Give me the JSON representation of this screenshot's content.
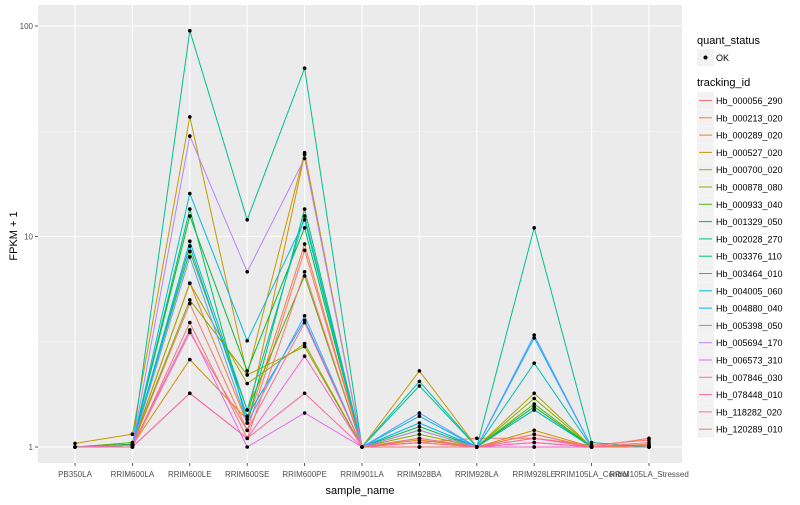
{
  "chart_data": {
    "type": "line",
    "title": "",
    "xlabel": "sample_name",
    "ylabel": "FPKM + 1",
    "y_scale": "log10",
    "ylim": [
      1,
      100
    ],
    "y_ticks": [
      1,
      10,
      100
    ],
    "y_tick_labels": [
      "1",
      "10",
      "100"
    ],
    "categories": [
      "PB350LA",
      "RRIM600LA",
      "RRIM600LE",
      "RRIM600SE",
      "RRIM600PE",
      "RRIM901LA",
      "RRIM928BA",
      "RRIM928LA",
      "RRIM928LE",
      "RRIM105LA_Control",
      "RRIM105LA_Stressed"
    ],
    "legend": {
      "placement": "right",
      "quant_title": "quant_status",
      "quant_label": "OK",
      "tracking_title": "tracking_id"
    },
    "point_color": "#000000",
    "series": [
      {
        "name": "Hb_000056_290",
        "color": "#F8766D",
        "values": [
          1.0,
          1.02,
          4.8,
          1.2,
          8.6,
          1.0,
          1.05,
          1.1,
          1.1,
          1.02,
          1.08
        ]
      },
      {
        "name": "Hb_000213_020",
        "color": "#EB8335",
        "values": [
          1.0,
          1.02,
          6.0,
          1.3,
          9.2,
          1.0,
          1.05,
          1.0,
          1.15,
          1.0,
          1.03
        ]
      },
      {
        "name": "Hb_000289_020",
        "color": "#DA8E00",
        "values": [
          1.0,
          1.02,
          2.6,
          1.35,
          24.5,
          1.0,
          1.08,
          1.0,
          1.2,
          1.0,
          1.02
        ]
      },
      {
        "name": "Hb_000527_020",
        "color": "#C49A00",
        "values": [
          1.04,
          1.15,
          37.0,
          2.2,
          25.0,
          1.0,
          2.3,
          1.0,
          1.5,
          1.0,
          1.0
        ]
      },
      {
        "name": "Hb_000700_020",
        "color": "#A9A400",
        "values": [
          1.0,
          1.03,
          6.0,
          2.0,
          3.1,
          1.0,
          1.1,
          1.0,
          1.8,
          1.0,
          1.0
        ]
      },
      {
        "name": "Hb_000878_080",
        "color": "#87AC00",
        "values": [
          1.0,
          1.03,
          5.0,
          2.2,
          3.0,
          1.0,
          1.15,
          1.0,
          1.7,
          1.0,
          1.0
        ]
      },
      {
        "name": "Hb_000933_040",
        "color": "#53B400",
        "values": [
          1.0,
          1.05,
          8.5,
          1.5,
          6.5,
          1.0,
          1.2,
          1.0,
          1.6,
          1.0,
          1.0
        ]
      },
      {
        "name": "Hb_001329_050",
        "color": "#00BA38",
        "values": [
          1.0,
          1.03,
          12.5,
          2.3,
          11.0,
          1.0,
          1.25,
          1.0,
          1.55,
          1.0,
          1.0
        ]
      },
      {
        "name": "Hb_002028_270",
        "color": "#00BE6C",
        "values": [
          1.0,
          1.02,
          13.5,
          1.3,
          13.5,
          1.0,
          1.0,
          1.0,
          1.0,
          1.0,
          1.0
        ]
      },
      {
        "name": "Hb_003376_110",
        "color": "#00C08E",
        "values": [
          1.0,
          1.02,
          95.0,
          12.0,
          63.0,
          1.0,
          1.95,
          1.0,
          11.0,
          1.05,
          1.0
        ]
      },
      {
        "name": "Hb_003464_010",
        "color": "#00C0AF",
        "values": [
          1.0,
          1.02,
          9.5,
          1.5,
          12.5,
          1.0,
          2.05,
          1.0,
          2.5,
          1.0,
          1.0
        ]
      },
      {
        "name": "Hb_004005_060",
        "color": "#00BCD8",
        "values": [
          1.0,
          1.02,
          16.0,
          3.2,
          12.0,
          1.0,
          1.4,
          1.0,
          1.5,
          1.0,
          1.0
        ]
      },
      {
        "name": "Hb_004880_040",
        "color": "#00B0F6",
        "values": [
          1.0,
          1.02,
          9.0,
          1.4,
          4.0,
          1.0,
          1.3,
          1.0,
          3.3,
          1.0,
          1.0
        ]
      },
      {
        "name": "Hb_005398_050",
        "color": "#619CFF",
        "values": [
          1.0,
          1.02,
          8.0,
          1.3,
          4.2,
          1.0,
          1.45,
          1.0,
          3.4,
          1.0,
          1.0
        ]
      },
      {
        "name": "Hb_005694_170",
        "color": "#B983FF",
        "values": [
          1.0,
          1.02,
          30.0,
          6.8,
          23.5,
          1.0,
          1.2,
          1.0,
          1.1,
          1.0,
          1.0
        ]
      },
      {
        "name": "Hb_006573_310",
        "color": "#E76BF3",
        "values": [
          1.0,
          1.02,
          3.6,
          1.0,
          1.45,
          1.0,
          1.0,
          1.0,
          1.05,
          1.0,
          1.0
        ]
      },
      {
        "name": "Hb_007846_030",
        "color": "#FD61D1",
        "values": [
          1.0,
          1.0,
          1.8,
          1.1,
          2.7,
          1.0,
          1.0,
          1.0,
          1.0,
          1.0,
          1.0
        ]
      },
      {
        "name": "Hb_078448_010",
        "color": "#FF67A4",
        "values": [
          1.0,
          1.0,
          1.8,
          1.1,
          1.8,
          1.0,
          1.05,
          1.0,
          1.05,
          1.0,
          1.0
        ]
      },
      {
        "name": "Hb_118282_020",
        "color": "#FF6C91",
        "values": [
          1.0,
          1.0,
          3.5,
          1.2,
          3.9,
          1.0,
          1.1,
          1.0,
          1.1,
          1.0,
          1.05
        ]
      },
      {
        "name": "Hb_120289_010",
        "color": "#F8766D",
        "values": [
          1.0,
          1.0,
          3.9,
          1.1,
          6.8,
          1.0,
          1.0,
          1.0,
          1.15,
          1.0,
          1.1
        ]
      }
    ]
  }
}
